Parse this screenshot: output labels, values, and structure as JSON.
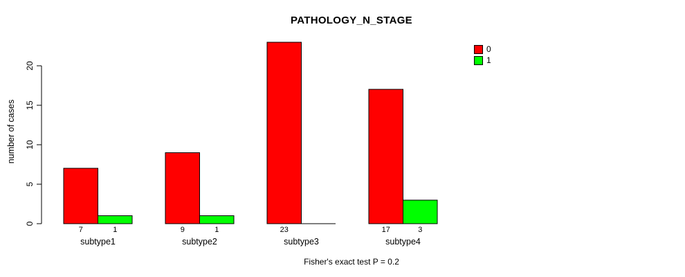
{
  "chart_data": {
    "type": "bar",
    "title": "PATHOLOGY_N_STAGE",
    "categories": [
      "subtype1",
      "subtype2",
      "subtype3",
      "subtype4"
    ],
    "series": [
      {
        "name": "0",
        "color": "#ff0000",
        "values": [
          7,
          9,
          23,
          17
        ]
      },
      {
        "name": "1",
        "color": "#00ff00",
        "values": [
          1,
          1,
          0,
          3
        ]
      }
    ],
    "bar_value_labels": [
      [
        "7",
        "1"
      ],
      [
        "9",
        "1"
      ],
      [
        "23",
        ""
      ],
      [
        "17",
        "3"
      ]
    ],
    "xlabel": "",
    "ylabel": "number of cases",
    "ylim": [
      0,
      23
    ],
    "yticks": [
      0,
      5,
      10,
      15,
      20
    ],
    "grid": false,
    "legend_position": "top-right",
    "annotation": "Fisher's exact test P = 0.2",
    "background_color": "#ffffff",
    "bar_border_color": "#000000"
  }
}
